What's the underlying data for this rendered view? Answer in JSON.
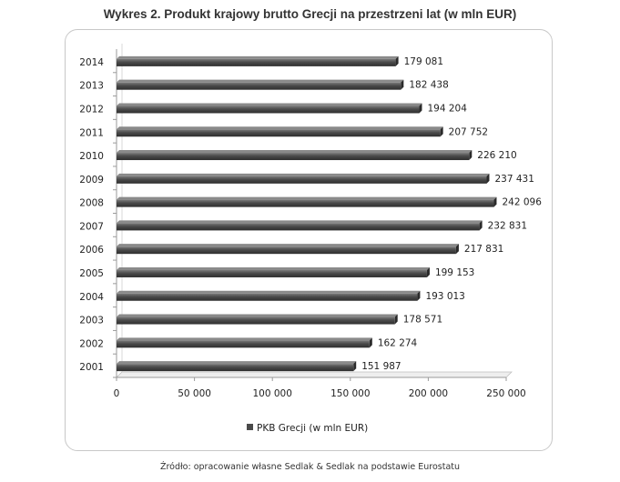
{
  "title": "Wykres 2. Produkt krajowy brutto Grecji na przestrzeni lat (w mln EUR)",
  "source": "Źródło: opracowanie własne Sedlak & Sedlak na podstawie Eurostatu",
  "chart_data": {
    "type": "bar",
    "orientation": "horizontal",
    "title": "Wykres 2. Produkt krajowy brutto Grecji na przestrzeni lat (w mln EUR)",
    "categories": [
      "2014",
      "2013",
      "2012",
      "2011",
      "2010",
      "2009",
      "2008",
      "2007",
      "2006",
      "2005",
      "2004",
      "2003",
      "2002",
      "2001"
    ],
    "series": [
      {
        "name": "PKB Grecji (w mln EUR)",
        "values": [
          179081,
          182438,
          194204,
          207752,
          226210,
          237431,
          242096,
          232831,
          217831,
          199153,
          193013,
          178571,
          162274,
          151987
        ],
        "labels": [
          "179 081",
          "182 438",
          "194 204",
          "207 752",
          "226 210",
          "237 431",
          "242 096",
          "232 831",
          "217 831",
          "199 153",
          "193 013",
          "178 571",
          "162 274",
          "151 987"
        ],
        "color": "#4a4a4a"
      }
    ],
    "xlim": [
      0,
      250000
    ],
    "xticks": [
      0,
      50000,
      100000,
      150000,
      200000,
      250000
    ],
    "xtick_labels": [
      "0",
      "50 000",
      "100 000",
      "150 000",
      "200 000",
      "250 000"
    ],
    "grid": false,
    "legend": "bottom"
  }
}
